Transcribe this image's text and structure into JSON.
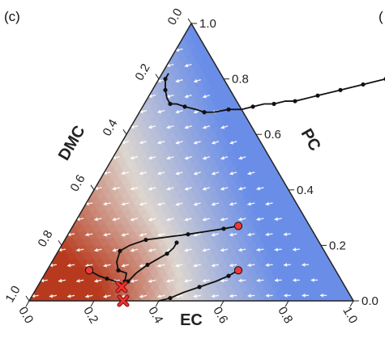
{
  "panel_label": "(c)",
  "next_panel_label": "(",
  "chart_data": {
    "type": "ternary",
    "axes": {
      "bottom": {
        "label": "EC",
        "ticks": [
          "0.0",
          "0.2",
          "0.4",
          "0.6",
          "0.8",
          "1.0"
        ]
      },
      "right": {
        "label": "PC",
        "ticks": [
          "0.0",
          "0.2",
          "0.4",
          "0.6",
          "0.8",
          "1.0"
        ]
      },
      "left": {
        "label": "DMC",
        "ticks": [
          "0.0",
          "0.2",
          "0.4",
          "0.6",
          "0.8",
          "1.0"
        ]
      }
    },
    "colormap": {
      "high": "#b83a1e",
      "mid": "#ddd6d0",
      "low": "#6a8ee8"
    },
    "trajectories": [
      {
        "points": [
          [
            0.02,
            0.82
          ],
          [
            0.02,
            0.8
          ],
          [
            0.03,
            0.78
          ],
          [
            0.04,
            0.76
          ],
          [
            0.06,
            0.73
          ],
          [
            0.08,
            0.71
          ],
          [
            0.1,
            0.71
          ],
          [
            0.13,
            0.7
          ],
          [
            0.17,
            0.69
          ],
          [
            0.2,
            0.68
          ],
          [
            0.23,
            0.68
          ],
          [
            0.27,
            0.69
          ],
          [
            0.31,
            0.69
          ],
          [
            0.34,
            0.7
          ],
          [
            0.37,
            0.71
          ],
          [
            0.4,
            0.71
          ],
          [
            0.43,
            0.72
          ],
          [
            0.46,
            0.72
          ],
          [
            0.49,
            0.73
          ],
          [
            0.52,
            0.74
          ],
          [
            0.55,
            0.75
          ],
          [
            0.58,
            0.76
          ],
          [
            0.61,
            0.77
          ],
          [
            0.64,
            0.78
          ],
          [
            0.67,
            0.79
          ],
          [
            0.7,
            0.8
          ],
          [
            0.73,
            0.81
          ],
          [
            0.76,
            0.82
          ],
          [
            0.79,
            0.83
          ],
          [
            0.82,
            0.84
          ],
          [
            0.85,
            0.85
          ],
          [
            0.88,
            0.86
          ],
          [
            0.91,
            0.87
          ],
          [
            0.93,
            0.88
          ]
        ]
      },
      {
        "points": [
          [
            0.26,
            0.05
          ],
          [
            0.26,
            0.07
          ],
          [
            0.25,
            0.1
          ],
          [
            0.22,
            0.11
          ],
          [
            0.2,
            0.14
          ],
          [
            0.19,
            0.18
          ],
          [
            0.21,
            0.2
          ],
          [
            0.25,
            0.22
          ],
          [
            0.31,
            0.23
          ],
          [
            0.37,
            0.24
          ],
          [
            0.42,
            0.25
          ],
          [
            0.47,
            0.26
          ],
          [
            0.51,
            0.27
          ]
        ]
      },
      {
        "points": [
          [
            0.26,
            0.05
          ],
          [
            0.27,
            0.07
          ],
          [
            0.28,
            0.1
          ],
          [
            0.3,
            0.13
          ],
          [
            0.32,
            0.15
          ],
          [
            0.34,
            0.17
          ],
          [
            0.35,
            0.19
          ],
          [
            0.35,
            0.21
          ]
        ]
      },
      {
        "points": [
          [
            0.26,
            0.05
          ],
          [
            0.25,
            0.06
          ],
          [
            0.23,
            0.07
          ],
          [
            0.2,
            0.08
          ],
          [
            0.17,
            0.09
          ],
          [
            0.13,
            0.11
          ]
        ]
      },
      {
        "points": [
          [
            0.4,
            0.0
          ],
          [
            0.43,
            0.01
          ],
          [
            0.46,
            0.03
          ],
          [
            0.5,
            0.05
          ],
          [
            0.54,
            0.07
          ],
          [
            0.57,
            0.09
          ],
          [
            0.59,
            0.11
          ]
        ]
      }
    ],
    "start_points": [
      [
        0.51,
        0.27
      ],
      [
        0.13,
        0.11
      ],
      [
        0.59,
        0.11
      ],
      [
        0.93,
        0.88
      ]
    ],
    "end_points": [
      [
        0.26,
        0.05
      ],
      [
        0.29,
        0.0
      ]
    ]
  }
}
